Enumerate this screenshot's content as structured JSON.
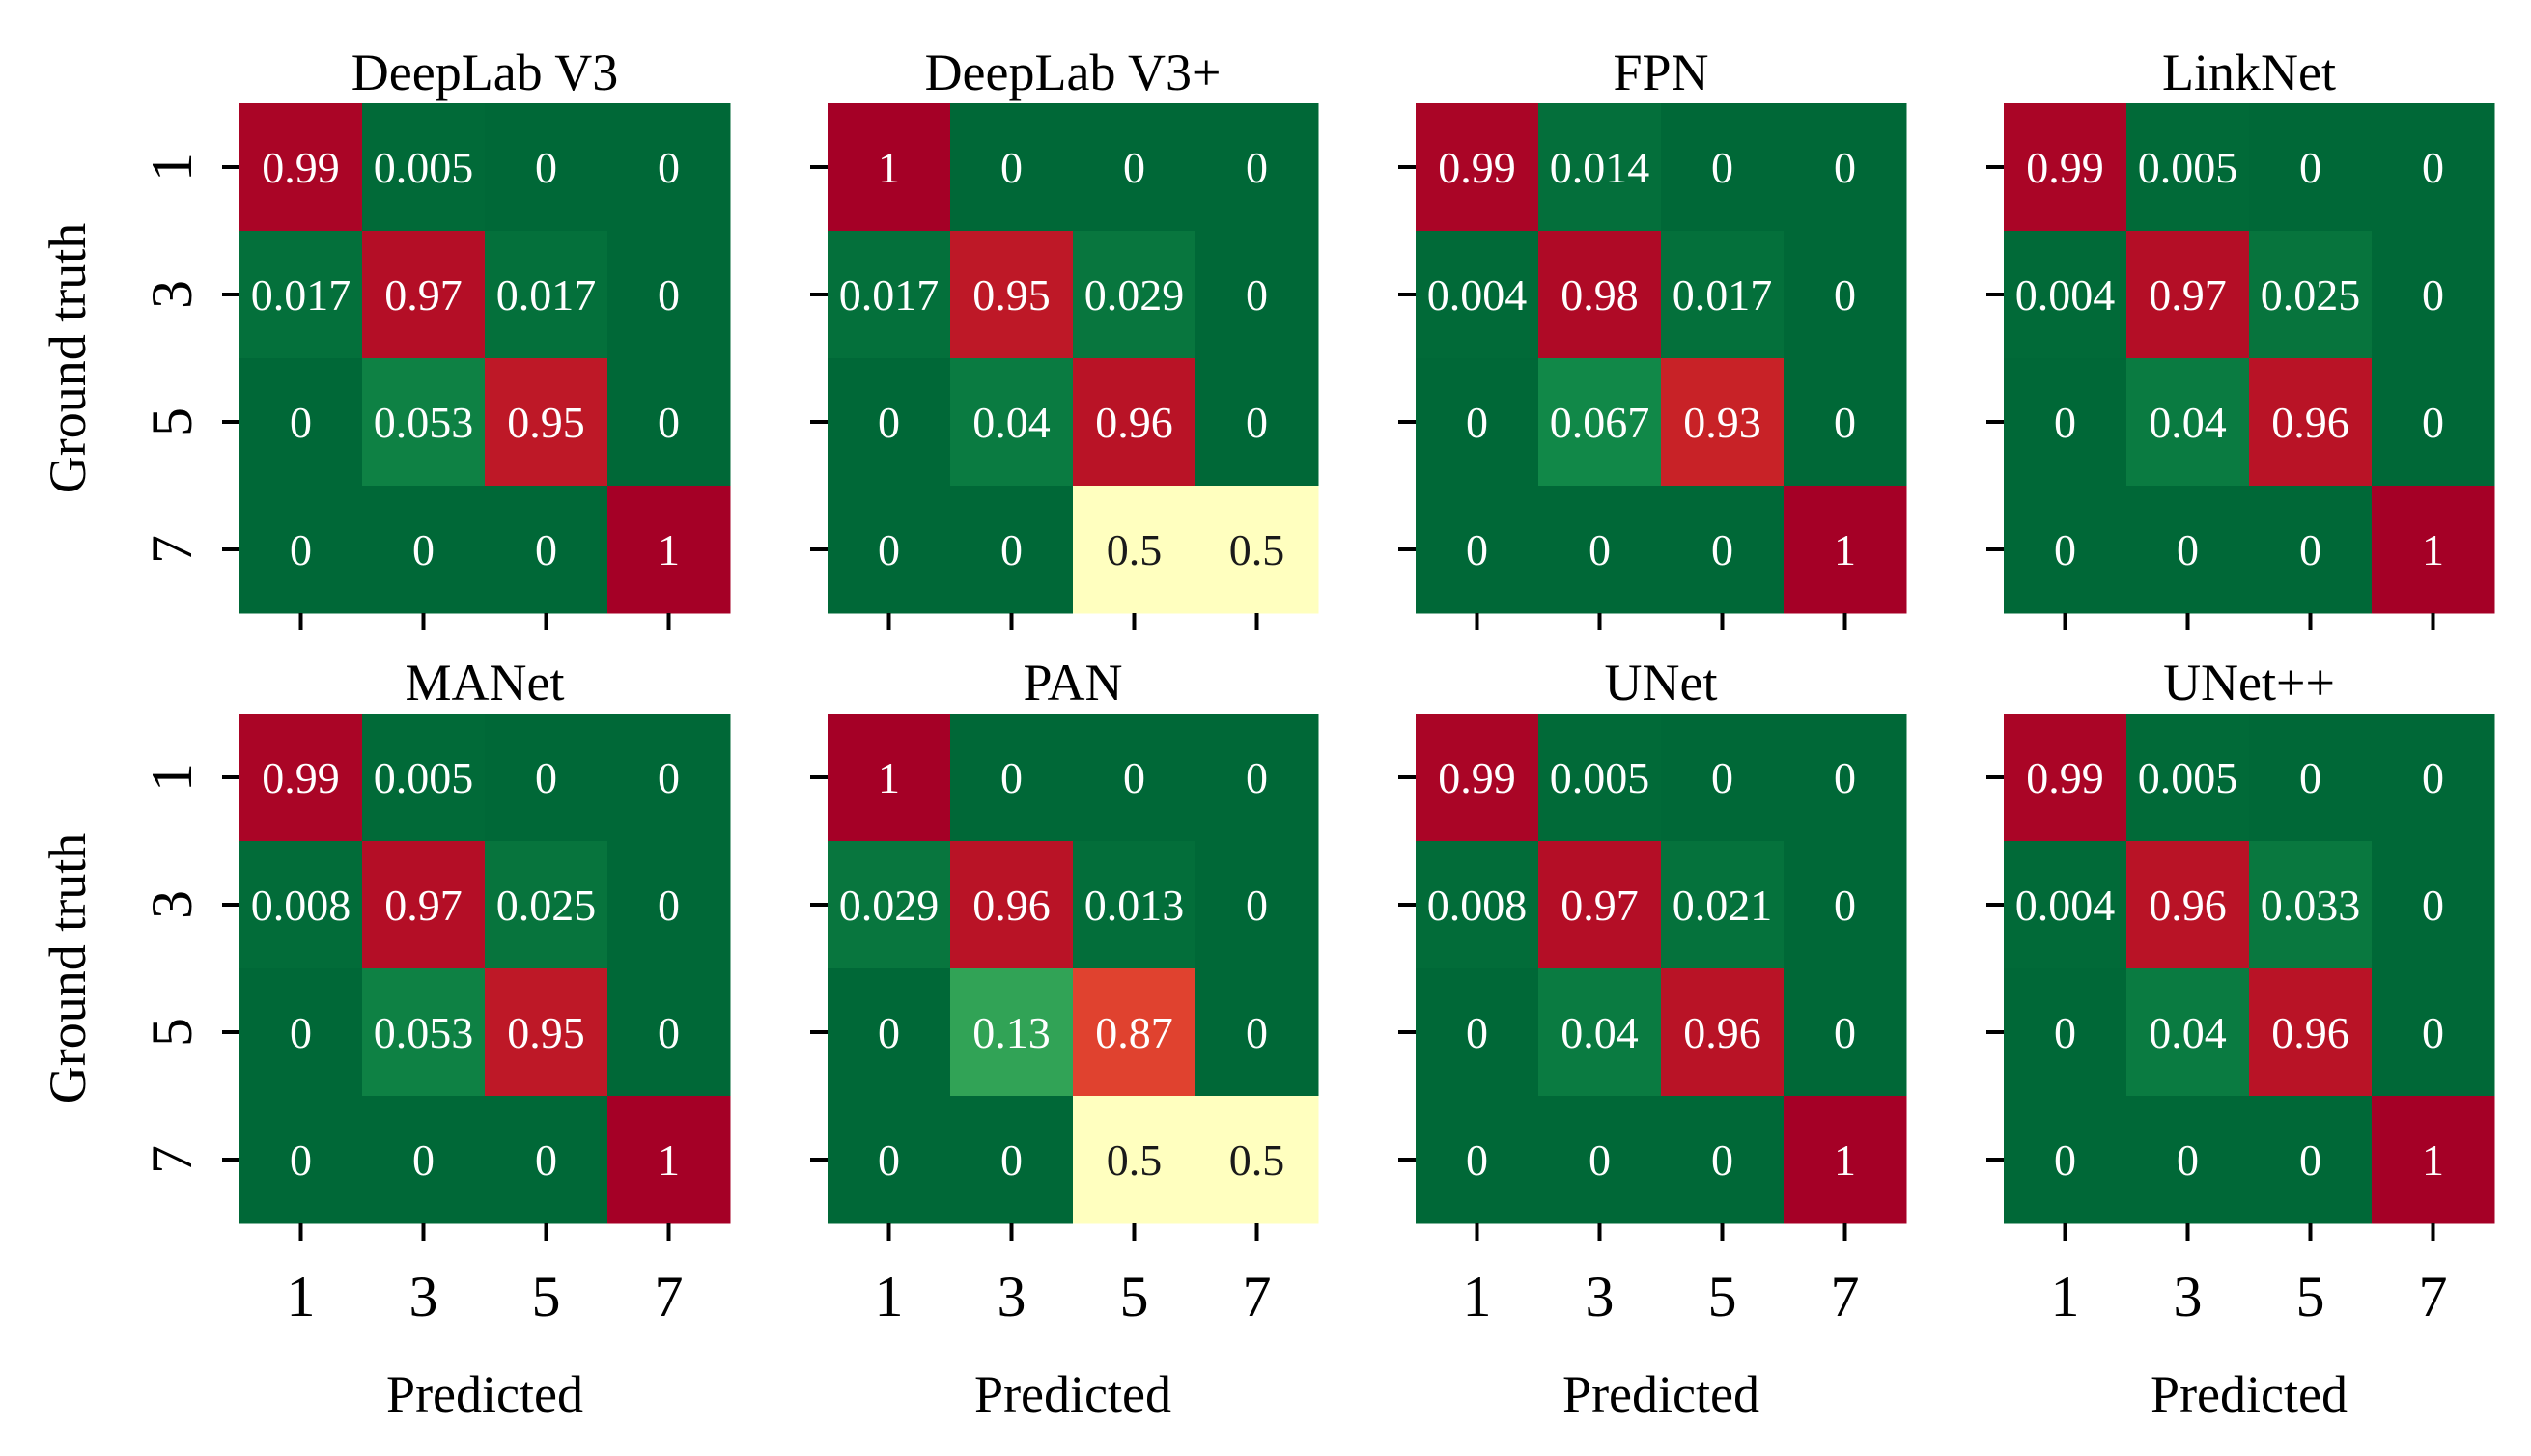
{
  "chart_data": [
    {
      "type": "heatmap",
      "title": "DeepLab V3",
      "xlabel": "",
      "ylabel": "Ground truth",
      "x_categories": [
        "1",
        "3",
        "5",
        "7"
      ],
      "y_categories": [
        "1",
        "3",
        "5",
        "7"
      ],
      "values": [
        [
          0.99,
          0.005,
          0,
          0
        ],
        [
          0.017,
          0.97,
          0.017,
          0
        ],
        [
          0,
          0.053,
          0.95,
          0
        ],
        [
          0,
          0,
          0,
          1
        ]
      ],
      "labels": [
        [
          "0.99",
          "0.005",
          "0",
          "0"
        ],
        [
          "0.017",
          "0.97",
          "0.017",
          "0"
        ],
        [
          "0",
          "0.053",
          "0.95",
          "0"
        ],
        [
          "0",
          "0",
          "0",
          "1"
        ]
      ]
    },
    {
      "type": "heatmap",
      "title": "DeepLab V3+",
      "xlabel": "",
      "ylabel": "",
      "x_categories": [
        "1",
        "3",
        "5",
        "7"
      ],
      "y_categories": [
        "1",
        "3",
        "5",
        "7"
      ],
      "values": [
        [
          1,
          0,
          0,
          0
        ],
        [
          0.017,
          0.95,
          0.029,
          0
        ],
        [
          0,
          0.04,
          0.96,
          0
        ],
        [
          0,
          0,
          0.5,
          0.5
        ]
      ],
      "labels": [
        [
          "1",
          "0",
          "0",
          "0"
        ],
        [
          "0.017",
          "0.95",
          "0.029",
          "0"
        ],
        [
          "0",
          "0.04",
          "0.96",
          "0"
        ],
        [
          "0",
          "0",
          "0.5",
          "0.5"
        ]
      ]
    },
    {
      "type": "heatmap",
      "title": "FPN",
      "xlabel": "",
      "ylabel": "",
      "x_categories": [
        "1",
        "3",
        "5",
        "7"
      ],
      "y_categories": [
        "1",
        "3",
        "5",
        "7"
      ],
      "values": [
        [
          0.99,
          0.014,
          0,
          0
        ],
        [
          0.004,
          0.98,
          0.017,
          0
        ],
        [
          0,
          0.067,
          0.93,
          0
        ],
        [
          0,
          0,
          0,
          1
        ]
      ],
      "labels": [
        [
          "0.99",
          "0.014",
          "0",
          "0"
        ],
        [
          "0.004",
          "0.98",
          "0.017",
          "0"
        ],
        [
          "0",
          "0.067",
          "0.93",
          "0"
        ],
        [
          "0",
          "0",
          "0",
          "1"
        ]
      ]
    },
    {
      "type": "heatmap",
      "title": "LinkNet",
      "xlabel": "",
      "ylabel": "",
      "x_categories": [
        "1",
        "3",
        "5",
        "7"
      ],
      "y_categories": [
        "1",
        "3",
        "5",
        "7"
      ],
      "values": [
        [
          0.99,
          0.005,
          0,
          0
        ],
        [
          0.004,
          0.97,
          0.025,
          0
        ],
        [
          0,
          0.04,
          0.96,
          0
        ],
        [
          0,
          0,
          0,
          1
        ]
      ],
      "labels": [
        [
          "0.99",
          "0.005",
          "0",
          "0"
        ],
        [
          "0.004",
          "0.97",
          "0.025",
          "0"
        ],
        [
          "0",
          "0.04",
          "0.96",
          "0"
        ],
        [
          "0",
          "0",
          "0",
          "1"
        ]
      ]
    },
    {
      "type": "heatmap",
      "title": "MANet",
      "xlabel": "Predicted",
      "ylabel": "Ground truth",
      "x_categories": [
        "1",
        "3",
        "5",
        "7"
      ],
      "y_categories": [
        "1",
        "3",
        "5",
        "7"
      ],
      "values": [
        [
          0.99,
          0.005,
          0,
          0
        ],
        [
          0.008,
          0.97,
          0.025,
          0
        ],
        [
          0,
          0.053,
          0.95,
          0
        ],
        [
          0,
          0,
          0,
          1
        ]
      ],
      "labels": [
        [
          "0.99",
          "0.005",
          "0",
          "0"
        ],
        [
          "0.008",
          "0.97",
          "0.025",
          "0"
        ],
        [
          "0",
          "0.053",
          "0.95",
          "0"
        ],
        [
          "0",
          "0",
          "0",
          "1"
        ]
      ]
    },
    {
      "type": "heatmap",
      "title": "PAN",
      "xlabel": "Predicted",
      "ylabel": "",
      "x_categories": [
        "1",
        "3",
        "5",
        "7"
      ],
      "y_categories": [
        "1",
        "3",
        "5",
        "7"
      ],
      "values": [
        [
          1,
          0,
          0,
          0
        ],
        [
          0.029,
          0.96,
          0.013,
          0
        ],
        [
          0,
          0.13,
          0.87,
          0
        ],
        [
          0,
          0,
          0.5,
          0.5
        ]
      ],
      "labels": [
        [
          "1",
          "0",
          "0",
          "0"
        ],
        [
          "0.029",
          "0.96",
          "0.013",
          "0"
        ],
        [
          "0",
          "0.13",
          "0.87",
          "0"
        ],
        [
          "0",
          "0",
          "0.5",
          "0.5"
        ]
      ]
    },
    {
      "type": "heatmap",
      "title": "UNet",
      "xlabel": "Predicted",
      "ylabel": "",
      "x_categories": [
        "1",
        "3",
        "5",
        "7"
      ],
      "y_categories": [
        "1",
        "3",
        "5",
        "7"
      ],
      "values": [
        [
          0.99,
          0.005,
          0,
          0
        ],
        [
          0.008,
          0.97,
          0.021,
          0
        ],
        [
          0,
          0.04,
          0.96,
          0
        ],
        [
          0,
          0,
          0,
          1
        ]
      ],
      "labels": [
        [
          "0.99",
          "0.005",
          "0",
          "0"
        ],
        [
          "0.008",
          "0.97",
          "0.021",
          "0"
        ],
        [
          "0",
          "0.04",
          "0.96",
          "0"
        ],
        [
          "0",
          "0",
          "0",
          "1"
        ]
      ]
    },
    {
      "type": "heatmap",
      "title": "UNet++",
      "xlabel": "Predicted",
      "ylabel": "",
      "x_categories": [
        "1",
        "3",
        "5",
        "7"
      ],
      "y_categories": [
        "1",
        "3",
        "5",
        "7"
      ],
      "values": [
        [
          0.99,
          0.005,
          0,
          0
        ],
        [
          0.004,
          0.96,
          0.033,
          0
        ],
        [
          0,
          0.04,
          0.96,
          0
        ],
        [
          0,
          0,
          0,
          1
        ]
      ],
      "labels": [
        [
          "0.99",
          "0.005",
          "0",
          "0"
        ],
        [
          "0.004",
          "0.96",
          "0.033",
          "0"
        ],
        [
          "0",
          "0.04",
          "0.96",
          "0"
        ],
        [
          "0",
          "0",
          "0",
          "1"
        ]
      ]
    }
  ],
  "colormap": {
    "name": "RdYlGn reversed",
    "stops": [
      "#006837",
      "#1a9850",
      "#66bd63",
      "#a6d96a",
      "#d9ef8b",
      "#ffffbf",
      "#fee08b",
      "#fdae61",
      "#f46d43",
      "#d73027",
      "#a50026"
    ],
    "range": [
      0,
      1
    ]
  }
}
